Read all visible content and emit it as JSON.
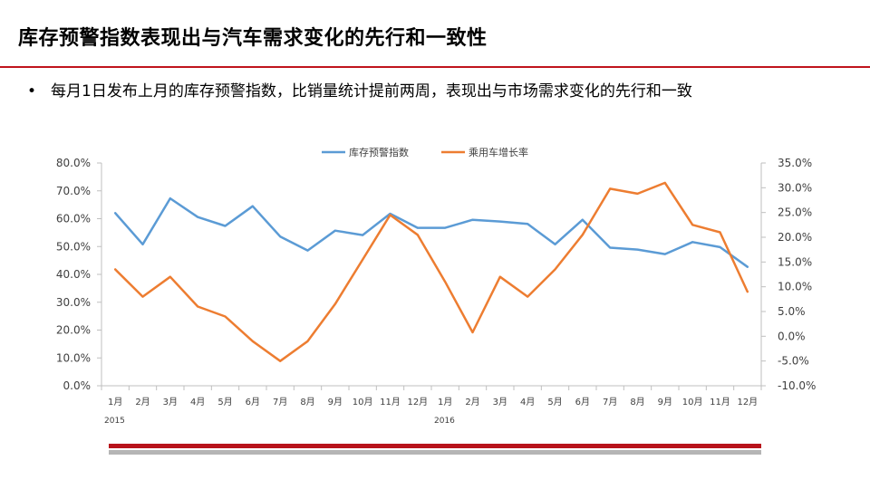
{
  "slide": {
    "title": "库存预警指数表现出与汽车需求变化的先行和一致性",
    "bullet_symbol": "•",
    "bullet_text": "每月1日发布上月的库存预警指数，比销量统计提前两周，表现出与市场需求变化的先行和一致"
  },
  "chart_data": {
    "type": "line",
    "categories": [
      "1月",
      "2月",
      "3月",
      "4月",
      "5月",
      "6月",
      "7月",
      "8月",
      "9月",
      "10月",
      "11月",
      "12月",
      "1月",
      "2月",
      "3月",
      "4月",
      "5月",
      "6月",
      "7月",
      "8月",
      "9月",
      "10月",
      "11月",
      "12月"
    ],
    "year_labels": [
      {
        "index": 0,
        "label": "2015"
      },
      {
        "index": 12,
        "label": "2016"
      }
    ],
    "series": [
      {
        "name": "库存预警指数",
        "axis": "left",
        "color": "#5b9bd5",
        "values": [
          62.0,
          50.8,
          67.3,
          60.6,
          57.4,
          64.5,
          53.6,
          48.6,
          55.7,
          54.1,
          61.8,
          56.7,
          56.7,
          59.6,
          59.0,
          58.1,
          50.8,
          59.6,
          49.6,
          48.9,
          47.3,
          51.6,
          49.8,
          42.7
        ]
      },
      {
        "name": "乘用车增长率",
        "axis": "right",
        "color": "#ed7d31",
        "values": [
          13.5,
          8.0,
          12.0,
          6.0,
          4.0,
          -1.0,
          -5.0,
          -1.0,
          6.5,
          15.5,
          24.5,
          20.5,
          11.0,
          0.8,
          12.0,
          8.0,
          13.5,
          20.5,
          29.8,
          28.8,
          31.0,
          22.5,
          21.0,
          9.0
        ]
      }
    ],
    "y_left": {
      "min": 0,
      "max": 80,
      "step": 10,
      "tick_labels": [
        "0.0%",
        "10.0%",
        "20.0%",
        "30.0%",
        "40.0%",
        "50.0%",
        "60.0%",
        "70.0%",
        "80.0%"
      ]
    },
    "y_right": {
      "min": -10,
      "max": 35,
      "step": 5,
      "tick_labels": [
        "-10.0%",
        "-5.0%",
        "0.0%",
        "5.0%",
        "10.0%",
        "15.0%",
        "20.0%",
        "25.0%",
        "30.0%",
        "35.0%"
      ]
    },
    "grid": false,
    "legend_position": "top"
  }
}
